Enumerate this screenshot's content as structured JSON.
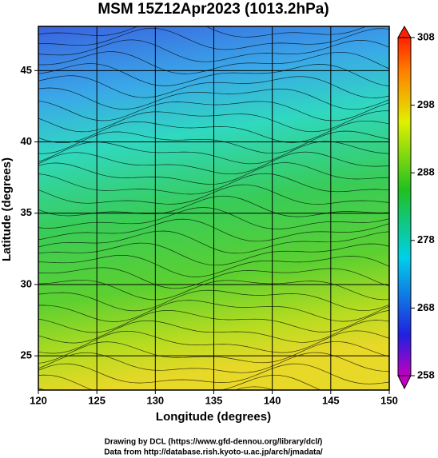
{
  "chart_data": {
    "type": "map",
    "title": "MSM 15Z12Apr2023 (1013.2hPa)",
    "x_label": "Longitude (degrees)",
    "y_label": "Latitude  (degrees)",
    "xlim": [
      120,
      150
    ],
    "xticks": [
      120,
      125,
      130,
      135,
      140,
      145,
      150
    ],
    "ylim": [
      22.6,
      48.1
    ],
    "yticks": [
      25,
      30,
      35,
      40,
      45
    ],
    "grid": true,
    "colorbar": {
      "lim": [
        258,
        308
      ],
      "ticks": [
        258,
        268,
        278,
        288,
        298,
        308
      ]
    },
    "credits": [
      "Drawing by DCL (https://www.gfd-dennou.org/library/dcl/)",
      "Data from http://database.rish.kyoto-u.ac.jp/arch/jmadata/"
    ]
  }
}
